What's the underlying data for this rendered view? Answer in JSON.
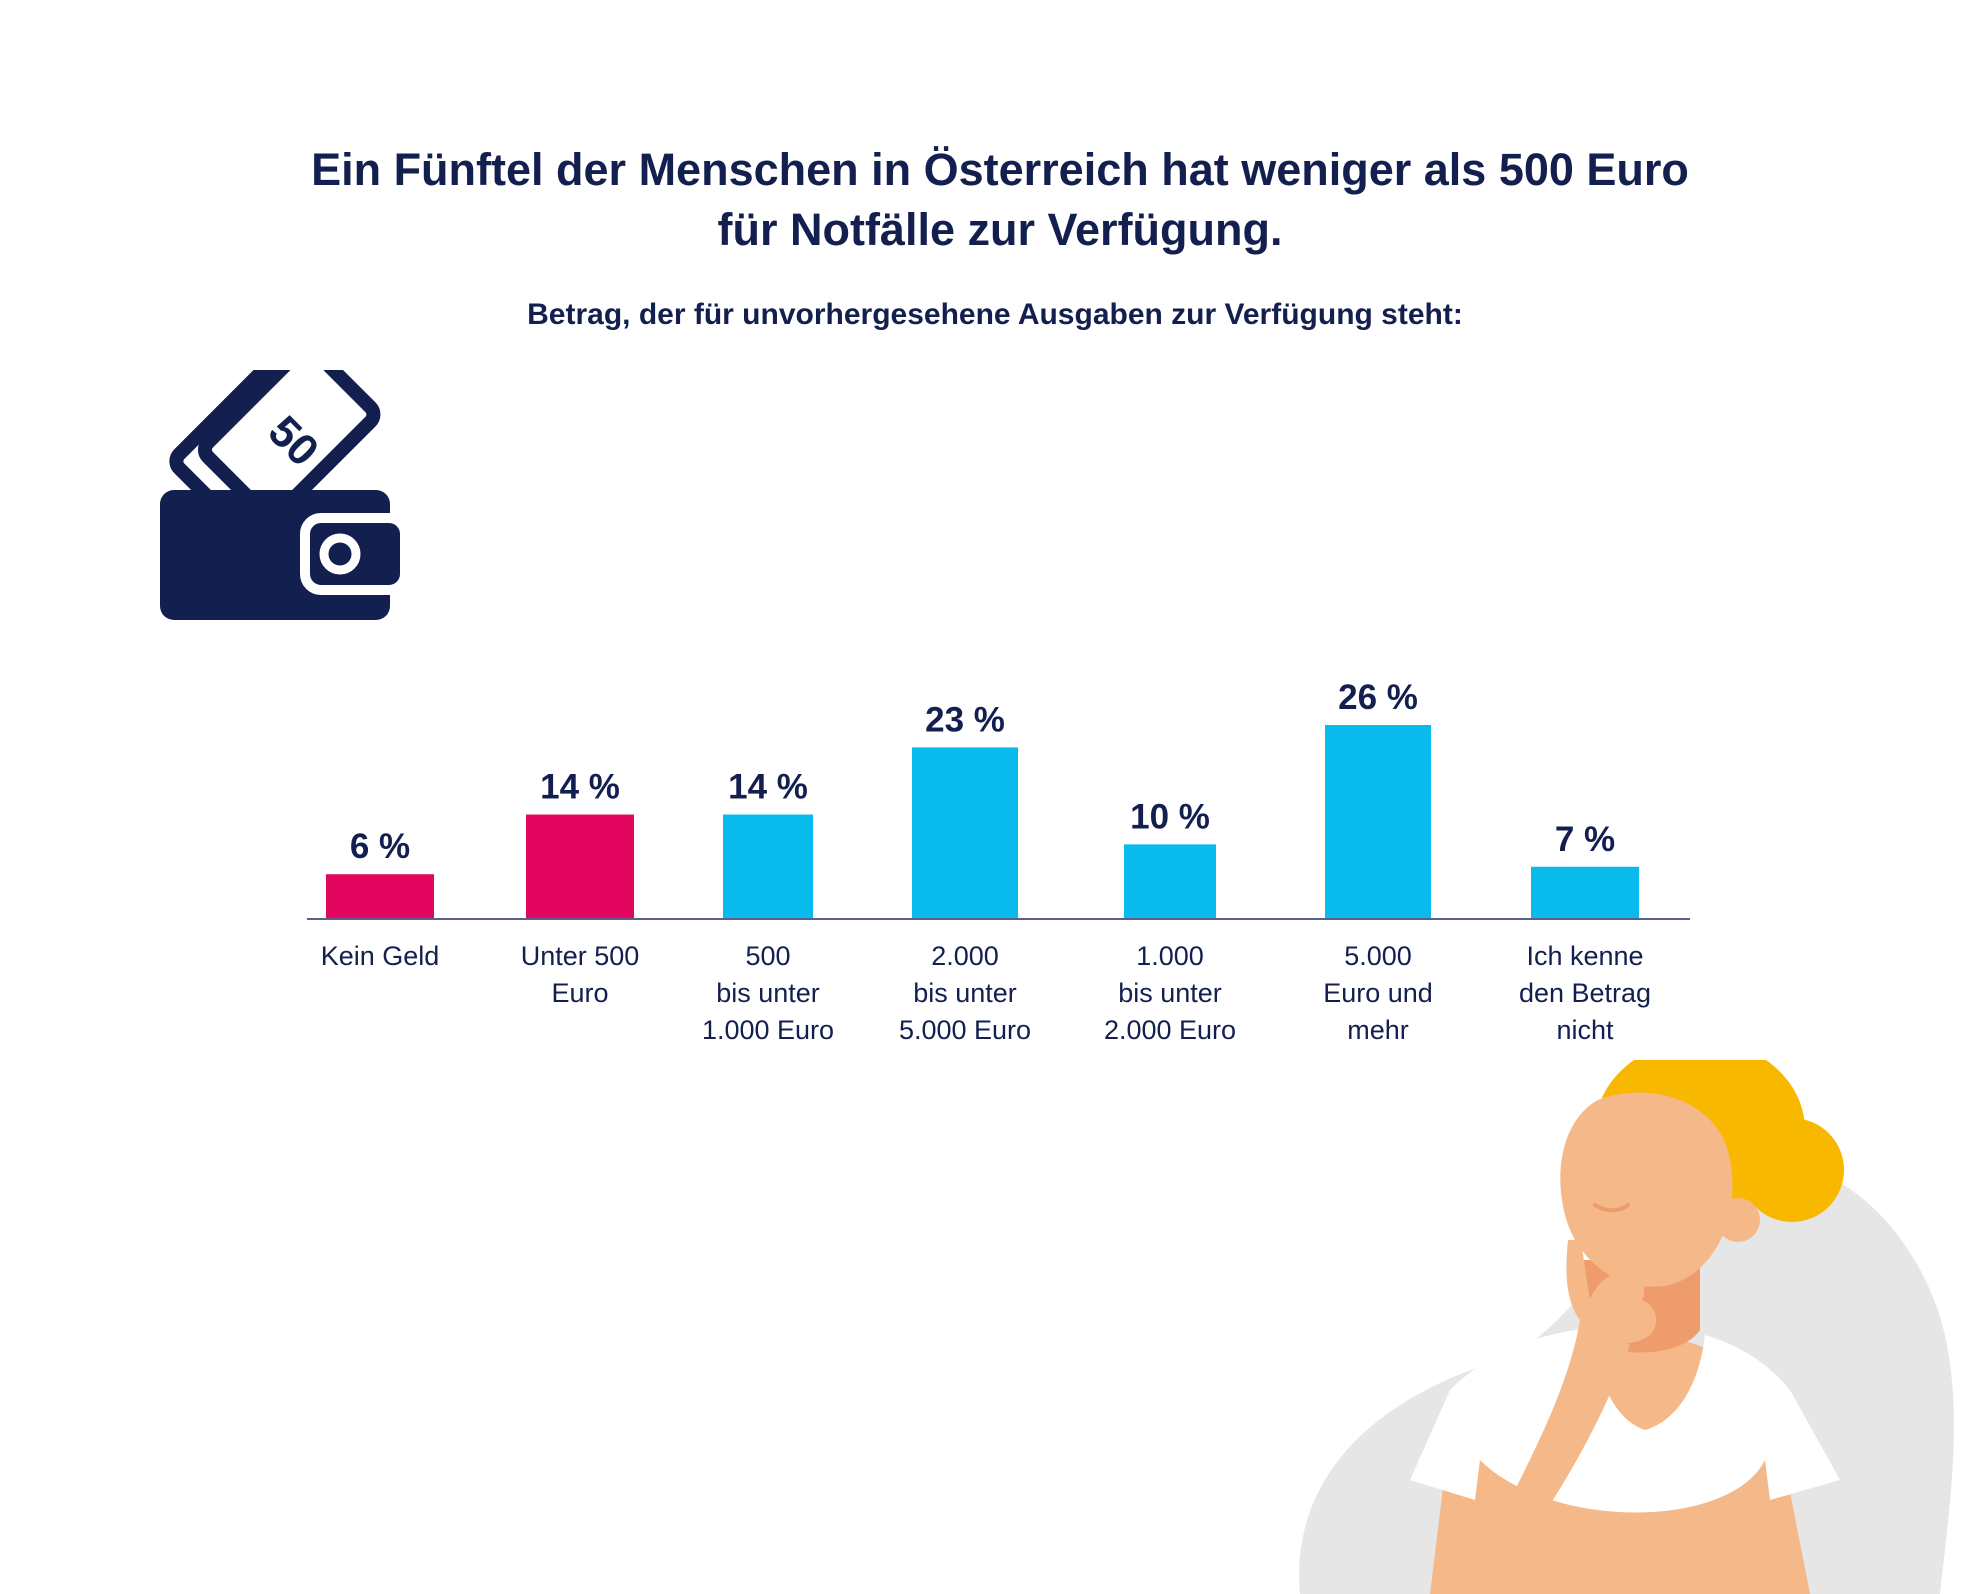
{
  "header": {
    "title_line1": "Ein Fünftel der Menschen in Österreich hat weniger als 500 Euro",
    "title_line2": "für Notfälle zur Verfügung.",
    "subtitle": "Betrag, der für unvorhergesehene Ausgaben zur Verfügung steht:"
  },
  "icons": {
    "wallet": "wallet-icon",
    "banknote_label": "50",
    "person": "thinking-woman-illustration"
  },
  "colors": {
    "navy": "#13204f",
    "highlight": "#e3065f",
    "bar": "#08bbec"
  },
  "chart_data": {
    "type": "bar",
    "title": "Betrag, der für unvorhergesehene Ausgaben zur Verfügung steht:",
    "unit": "%",
    "categories": [
      [
        "Kein Geld"
      ],
      [
        "Unter 500",
        "Euro"
      ],
      [
        "500",
        "bis unter",
        "1.000 Euro"
      ],
      [
        "2.000",
        "bis unter",
        "5.000 Euro"
      ],
      [
        "1.000",
        "bis unter",
        "2.000 Euro"
      ],
      [
        "5.000",
        "Euro und",
        "mehr"
      ],
      [
        "Ich kenne",
        "den Betrag",
        "nicht"
      ]
    ],
    "values": [
      6,
      14,
      14,
      23,
      10,
      26,
      7
    ],
    "value_labels": [
      "6 %",
      "14 %",
      "14 %",
      "23 %",
      "10 %",
      "26 %",
      "7 %"
    ],
    "highlighted": [
      true,
      true,
      false,
      false,
      false,
      false,
      false
    ],
    "ylim": [
      0,
      26
    ],
    "grid": false,
    "legend": "none"
  }
}
